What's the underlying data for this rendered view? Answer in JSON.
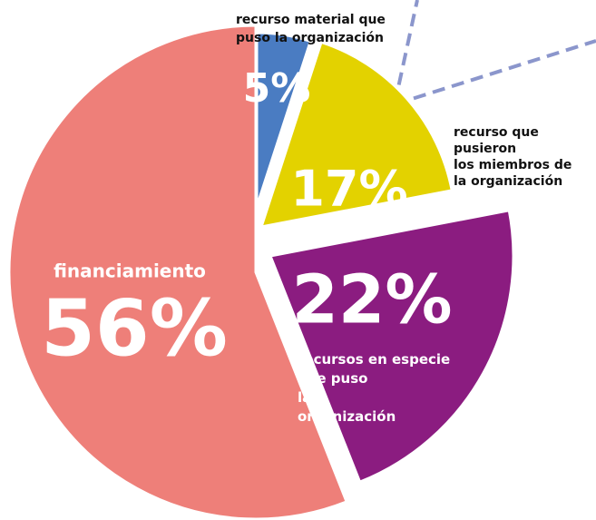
{
  "chart_data": {
    "type": "pie",
    "categories": [
      "recurso material que puso la organización",
      "recurso que pusieron los miembros de la organización",
      "recursos en especie que puso la organización",
      "financiamiento"
    ],
    "values": [
      5,
      17,
      22,
      56
    ],
    "value_labels": [
      "5%",
      "17%",
      "22%",
      "56%"
    ],
    "colors": [
      "#4a7cc2",
      "#e3d200",
      "#8b1c80",
      "#ee7f79"
    ]
  }
}
